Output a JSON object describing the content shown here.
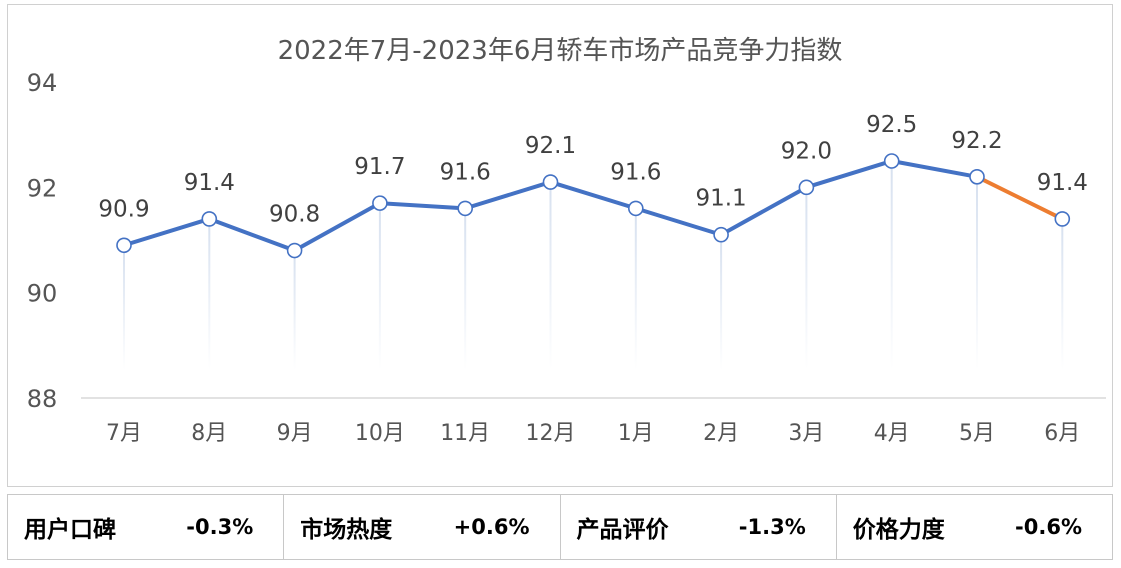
{
  "chart_data": {
    "type": "line",
    "title": "2022年7月-2023年6月轿车市场产品竞争力指数",
    "categories": [
      "7月",
      "8月",
      "9月",
      "10月",
      "11月",
      "12月",
      "1月",
      "2月",
      "3月",
      "4月",
      "5月",
      "6月"
    ],
    "series": [
      {
        "values": [
          90.9,
          91.4,
          90.8,
          91.7,
          91.6,
          92.1,
          91.6,
          91.1,
          92.0,
          92.5,
          92.2,
          91.4
        ],
        "labels": [
          "90.9",
          "91.4",
          "90.8",
          "91.7",
          "91.6",
          "92.1",
          "91.6",
          "91.1",
          "92.0",
          "92.5",
          "92.2",
          "91.4"
        ]
      }
    ],
    "yticks": [
      "88",
      "90",
      "92",
      "94"
    ],
    "ylim": [
      88,
      94
    ],
    "colors": {
      "line": "#4472c4",
      "highlight": "#ed7d31",
      "drop": "#d6e0ef"
    },
    "highlight_last_segment": true,
    "grid": false,
    "legend": "none"
  },
  "summary": [
    {
      "name": "用户口碑",
      "value": "-0.3%"
    },
    {
      "name": "市场热度",
      "value": "+0.6%"
    },
    {
      "name": "产品评价",
      "value": "-1.3%"
    },
    {
      "name": "价格力度",
      "value": "-0.6%"
    }
  ]
}
